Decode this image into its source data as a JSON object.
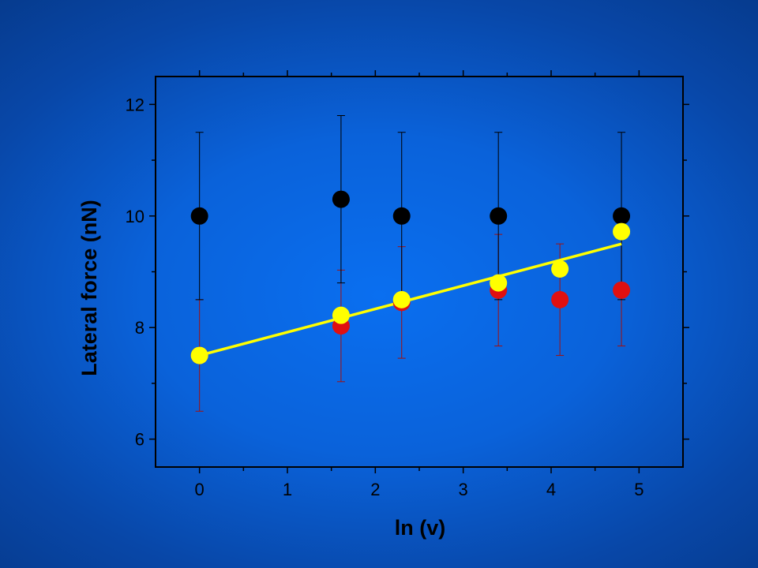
{
  "chart_data": {
    "type": "scatter",
    "title": "",
    "xlabel": "ln (v)",
    "ylabel": "Lateral force (nN)",
    "xlim": [
      -0.5,
      5.5
    ],
    "ylim": [
      5.5,
      12.5
    ],
    "x_ticks": [
      0,
      1,
      2,
      3,
      4,
      5
    ],
    "y_ticks": [
      6,
      8,
      10,
      12
    ],
    "grid": false,
    "colors": {
      "background": "#0a66e4",
      "axis": "#000000",
      "black_series": "#000000",
      "red_series": "#e01010",
      "yellow_series": "#ffff00",
      "red_errorbar": "#a01010"
    },
    "series": [
      {
        "color": "black",
        "x": [
          0,
          1.61,
          2.3,
          3.4,
          4.8
        ],
        "y": [
          10.0,
          10.3,
          10.0,
          10.0,
          10.0
        ],
        "error_low": [
          8.5,
          8.8,
          8.5,
          8.5,
          8.5
        ],
        "error_high": [
          11.5,
          11.8,
          11.5,
          11.5,
          11.5
        ]
      },
      {
        "color": "red",
        "x": [
          0,
          1.61,
          2.3,
          3.4,
          4.1,
          4.8
        ],
        "y": [
          7.5,
          8.03,
          8.45,
          8.67,
          8.5,
          8.67
        ],
        "error_low": [
          6.5,
          7.03,
          7.45,
          7.67,
          7.5,
          7.67
        ],
        "error_high": [
          8.5,
          9.03,
          9.45,
          9.67,
          9.5,
          9.67
        ]
      },
      {
        "color": "yellow",
        "x": [
          0,
          1.61,
          2.3,
          3.4,
          4.1,
          4.8
        ],
        "y": [
          7.5,
          8.22,
          8.5,
          8.8,
          9.05,
          9.72
        ]
      }
    ],
    "fit_line": {
      "color": "yellow",
      "x": [
        0,
        4.8
      ],
      "y": [
        7.5,
        9.5
      ]
    }
  }
}
